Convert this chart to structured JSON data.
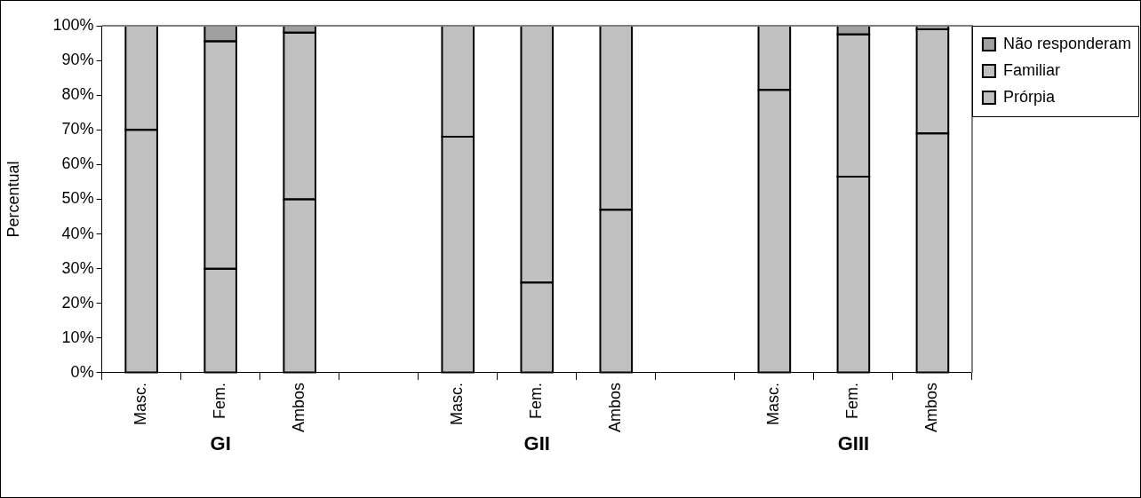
{
  "chart_data": {
    "type": "bar",
    "stacked": true,
    "ylabel": "Percentual",
    "categories": [
      "Masc.",
      "Fem.",
      "Ambos",
      null,
      "Masc.",
      "Fem.",
      "Ambos",
      null,
      "Masc.",
      "Fem.",
      "Ambos"
    ],
    "series": [
      {
        "name": "Prórpia",
        "color": "#c0c0c0",
        "values": [
          70,
          30,
          50,
          null,
          68,
          26,
          47,
          null,
          81.5,
          56.5,
          69
        ]
      },
      {
        "name": "Familiar",
        "color": "#c0c0c0",
        "values": [
          30,
          65.5,
          48,
          null,
          32,
          74,
          53,
          null,
          18.5,
          41,
          30
        ]
      },
      {
        "name": "Não responderam",
        "color": "#a0a0a0",
        "values": [
          0,
          4.5,
          2,
          null,
          0,
          0,
          0,
          null,
          0,
          2.5,
          1
        ]
      }
    ],
    "ylim": [
      0,
      100
    ],
    "yticks": [
      {
        "value": 0,
        "label": "0%"
      },
      {
        "value": 10,
        "label": "10%"
      },
      {
        "value": 20,
        "label": "20%"
      },
      {
        "value": 30,
        "label": "30%"
      },
      {
        "value": 40,
        "label": "40%"
      },
      {
        "value": 50,
        "label": "50%"
      },
      {
        "value": 60,
        "label": "60%"
      },
      {
        "value": 70,
        "label": "70%"
      },
      {
        "value": 80,
        "label": "80%"
      },
      {
        "value": 90,
        "label": "90%"
      },
      {
        "value": 100,
        "label": "100%"
      }
    ],
    "annotations": [
      "GI",
      "GII",
      "GIII"
    ],
    "legend": "top right",
    "grid": false
  }
}
